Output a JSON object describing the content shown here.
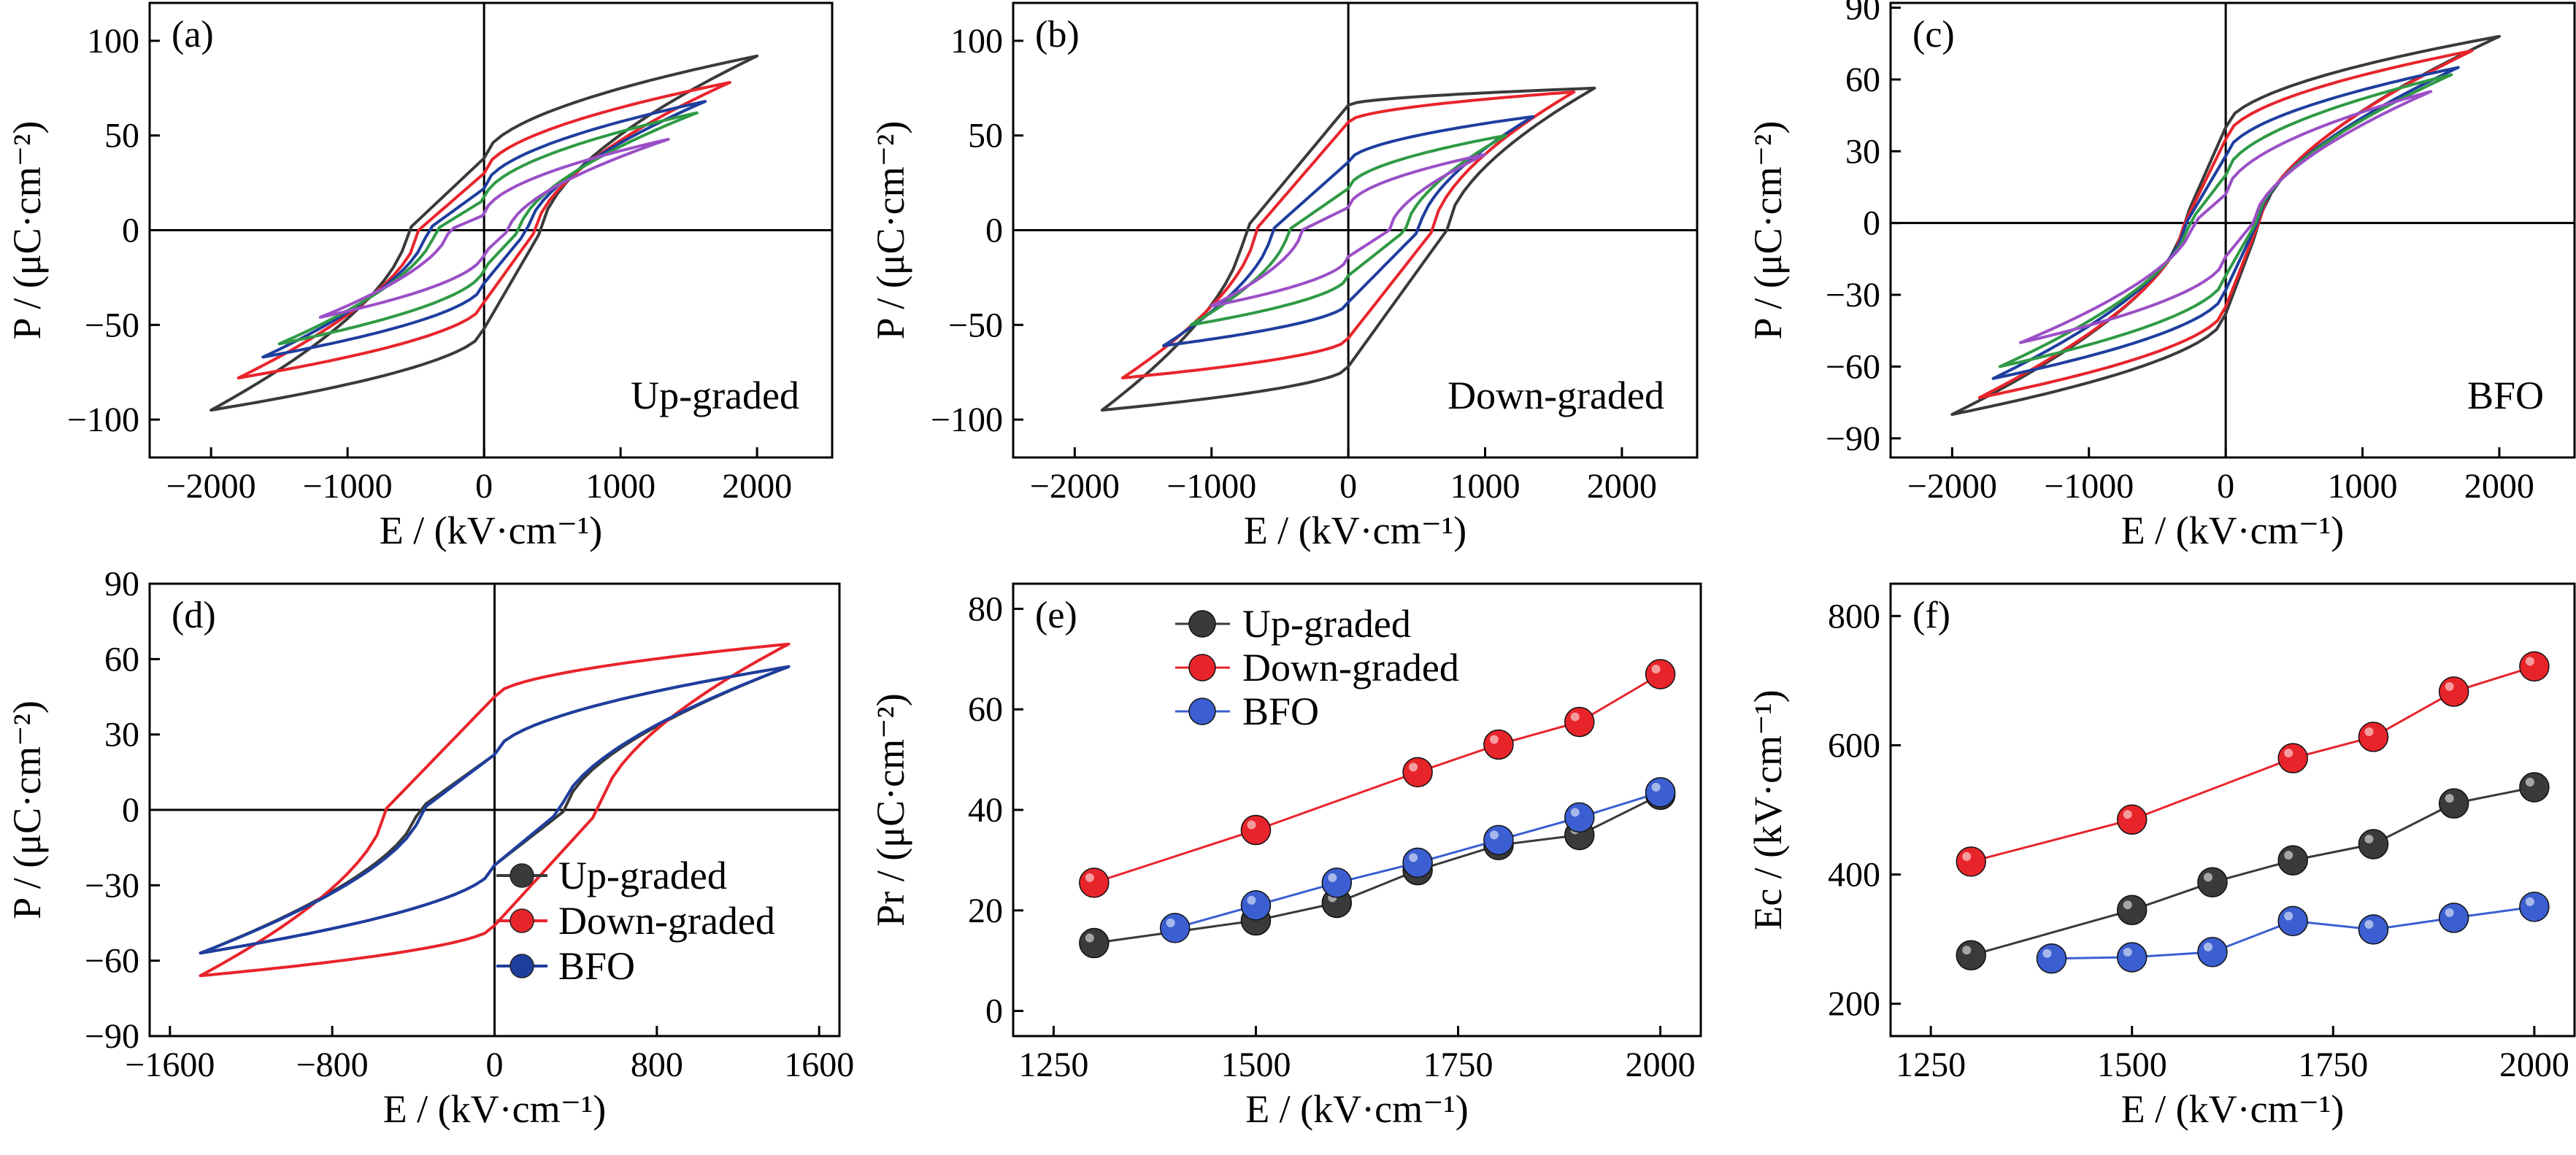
{
  "chart_data": [
    {
      "type": "line",
      "panel_label": "(a)",
      "annotation": "Up-graded",
      "xlabel": "E / (kV·cm⁻¹)",
      "ylabel": "P / (μC·cm⁻²)",
      "xlim": [
        -2450,
        2550
      ],
      "ylim": [
        -120,
        120
      ],
      "xticks": [
        -2000,
        -1000,
        0,
        1000,
        2000
      ],
      "yticks": [
        -100,
        -50,
        0,
        50,
        100
      ],
      "loops": [
        {
          "color": "#3a3a3a",
          "emax": 2000,
          "emin": -2000,
          "pmax": 92,
          "pmin": -95,
          "pr_up": 38,
          "pr_dn": -52,
          "ec_up": 420,
          "ec_dn": -560
        },
        {
          "color": "#e8242b",
          "emax": 1800,
          "emin": -1800,
          "pmax": 78,
          "pmin": -78,
          "pr_up": 30,
          "pr_dn": -38,
          "ec_up": 380,
          "ec_dn": -480
        },
        {
          "color": "#1e3e9e",
          "emax": 1620,
          "emin": -1620,
          "pmax": 68,
          "pmin": -67,
          "pr_up": 22,
          "pr_dn": -28,
          "ec_up": 320,
          "ec_dn": -420
        },
        {
          "color": "#2f9a45",
          "emax": 1560,
          "emin": -1500,
          "pmax": 62,
          "pmin": -60,
          "pr_up": 16,
          "pr_dn": -20,
          "ec_up": 260,
          "ec_dn": -360
        },
        {
          "color": "#9b4fc6",
          "emax": 1350,
          "emin": -1200,
          "pmax": 48,
          "pmin": -46,
          "pr_up": 8,
          "pr_dn": -12,
          "ec_up": 180,
          "ec_dn": -260
        }
      ]
    },
    {
      "type": "line",
      "panel_label": "(b)",
      "annotation": "Down-graded",
      "xlabel": "E / (kV·cm⁻¹)",
      "ylabel": "P / (μC·cm⁻²)",
      "xlim": [
        -2450,
        2550
      ],
      "ylim": [
        -120,
        120
      ],
      "xticks": [
        -2000,
        -1000,
        0,
        1000,
        2000
      ],
      "yticks": [
        -100,
        -50,
        0,
        50,
        100
      ],
      "loops": [
        {
          "color": "#3a3a3a",
          "emax": 1800,
          "emin": -1800,
          "pmax": 75,
          "pmin": -95,
          "pr_up": 66,
          "pr_dn": -72,
          "ec_up": 720,
          "ec_dn": -760
        },
        {
          "color": "#e8242b",
          "emax": 1650,
          "emin": -1650,
          "pmax": 73,
          "pmin": -78,
          "pr_up": 57,
          "pr_dn": -57,
          "ec_up": 620,
          "ec_dn": -680
        },
        {
          "color": "#1e3e9e",
          "emax": 1350,
          "emin": -1350,
          "pmax": 60,
          "pmin": -61,
          "pr_up": 36,
          "pr_dn": -38,
          "ec_up": 520,
          "ec_dn": -560
        },
        {
          "color": "#2f9a45",
          "emax": 1150,
          "emin": -1150,
          "pmax": 50,
          "pmin": -50,
          "pr_up": 22,
          "pr_dn": -24,
          "ec_up": 420,
          "ec_dn": -440
        },
        {
          "color": "#9b4fc6",
          "emax": 1000,
          "emin": -1000,
          "pmax": 40,
          "pmin": -40,
          "pr_up": 12,
          "pr_dn": -14,
          "ec_up": 300,
          "ec_dn": -340
        }
      ]
    },
    {
      "type": "line",
      "panel_label": "(c)",
      "annotation": "BFO",
      "xlabel": "E / (kV·cm⁻¹)",
      "ylabel": "P / (μC·cm⁻²)",
      "xlim": [
        -2450,
        2550
      ],
      "ylim": [
        -98,
        92
      ],
      "xticks": [
        -2000,
        -1000,
        0,
        1000,
        2000
      ],
      "yticks": [
        -90,
        -60,
        -30,
        0,
        30,
        60,
        90
      ],
      "loops": [
        {
          "color": "#3a3a3a",
          "emax": 2000,
          "emin": -2000,
          "pmax": 78,
          "pmin": -80,
          "pr_up": 40,
          "pr_dn": -38,
          "ec_up": 250,
          "ec_dn": -310
        },
        {
          "color": "#e8242b",
          "emax": 1800,
          "emin": -1800,
          "pmax": 72,
          "pmin": -73,
          "pr_up": 35,
          "pr_dn": -35,
          "ec_up": 240,
          "ec_dn": -300
        },
        {
          "color": "#1e3e9e",
          "emax": 1700,
          "emin": -1700,
          "pmax": 65,
          "pmin": -65,
          "pr_up": 28,
          "pr_dn": -28,
          "ec_up": 230,
          "ec_dn": -290
        },
        {
          "color": "#2f9a45",
          "emax": 1650,
          "emin": -1650,
          "pmax": 62,
          "pmin": -60,
          "pr_up": 20,
          "pr_dn": -22,
          "ec_up": 220,
          "ec_dn": -270
        },
        {
          "color": "#9b4fc6",
          "emax": 1500,
          "emin": -1500,
          "pmax": 55,
          "pmin": -50,
          "pr_up": 12,
          "pr_dn": -14,
          "ec_up": 200,
          "ec_dn": -240
        }
      ]
    },
    {
      "type": "line",
      "panel_label": "(d)",
      "xlabel": "E / (kV·cm⁻¹)",
      "ylabel": "P / (μC·cm⁻²)",
      "xlim": [
        -1700,
        1700
      ],
      "ylim": [
        -90,
        90
      ],
      "xticks": [
        -1600,
        -800,
        0,
        800,
        1600
      ],
      "yticks": [
        -90,
        -60,
        -30,
        0,
        30,
        60,
        90
      ],
      "legend": [
        "Up-graded",
        "Down-graded",
        "BFO"
      ],
      "loops": [
        {
          "color": "#3a3a3a",
          "emax": 1450,
          "emin": -1450,
          "pmax": 57,
          "pmin": -57,
          "pr_up": 22,
          "pr_dn": -22,
          "ec_up": 350,
          "ec_dn": -380
        },
        {
          "color": "#e8242b",
          "emax": 1450,
          "emin": -1450,
          "pmax": 66,
          "pmin": -66,
          "pr_up": 45,
          "pr_dn": -46,
          "ec_up": 520,
          "ec_dn": -540
        },
        {
          "color": "#1e3e9e",
          "emax": 1450,
          "emin": -1450,
          "pmax": 57,
          "pmin": -57,
          "pr_up": 22,
          "pr_dn": -22,
          "ec_up": 330,
          "ec_dn": -360
        }
      ]
    },
    {
      "type": "scatter",
      "panel_label": "(e)",
      "xlabel": "E / (kV·cm⁻¹)",
      "ylabel": "Pr / (μC·cm⁻²)",
      "xlim": [
        1200,
        2050
      ],
      "ylim": [
        -5,
        85
      ],
      "xticks": [
        1250,
        1500,
        1750,
        2000
      ],
      "yticks": [
        0,
        20,
        40,
        60,
        80
      ],
      "series": [
        {
          "name": "Up-graded",
          "color": "#3a3a3a",
          "x": [
            1300,
            1500,
            1600,
            1700,
            1800,
            1900,
            2000
          ],
          "y": [
            13.5,
            18,
            21.5,
            28,
            33,
            35,
            43
          ]
        },
        {
          "name": "Down-graded",
          "color": "#e8242b",
          "x": [
            1300,
            1500,
            1700,
            1800,
            1900,
            2000
          ],
          "y": [
            25.5,
            36,
            47.5,
            53,
            57.5,
            67
          ]
        },
        {
          "name": "BFO",
          "color": "#3b5fd0",
          "x": [
            1400,
            1500,
            1600,
            1700,
            1800,
            1900,
            2000
          ],
          "y": [
            16.5,
            21,
            25.5,
            29.5,
            34,
            38.5,
            43.5
          ]
        }
      ]
    },
    {
      "type": "scatter",
      "panel_label": "(f)",
      "xlabel": "E / (kV·cm⁻¹)",
      "ylabel": "Ec / (kV·cm⁻¹)",
      "xlim": [
        1200,
        2050
      ],
      "ylim": [
        150,
        850
      ],
      "xticks": [
        1250,
        1500,
        1750,
        2000
      ],
      "yticks": [
        200,
        400,
        600,
        800
      ],
      "series": [
        {
          "name": "Up-graded",
          "color": "#3a3a3a",
          "x": [
            1300,
            1500,
            1600,
            1700,
            1800,
            1900,
            2000
          ],
          "y": [
            275,
            345,
            388,
            422,
            447,
            510,
            535
          ]
        },
        {
          "name": "Down-graded",
          "color": "#e8242b",
          "x": [
            1300,
            1500,
            1700,
            1800,
            1900,
            2000
          ],
          "y": [
            420,
            485,
            580,
            613,
            683,
            722
          ]
        },
        {
          "name": "BFO",
          "color": "#3b5fd0",
          "x": [
            1400,
            1500,
            1600,
            1700,
            1800,
            1900,
            2000
          ],
          "y": [
            270,
            272,
            280,
            328,
            315,
            333,
            350
          ]
        }
      ]
    }
  ]
}
